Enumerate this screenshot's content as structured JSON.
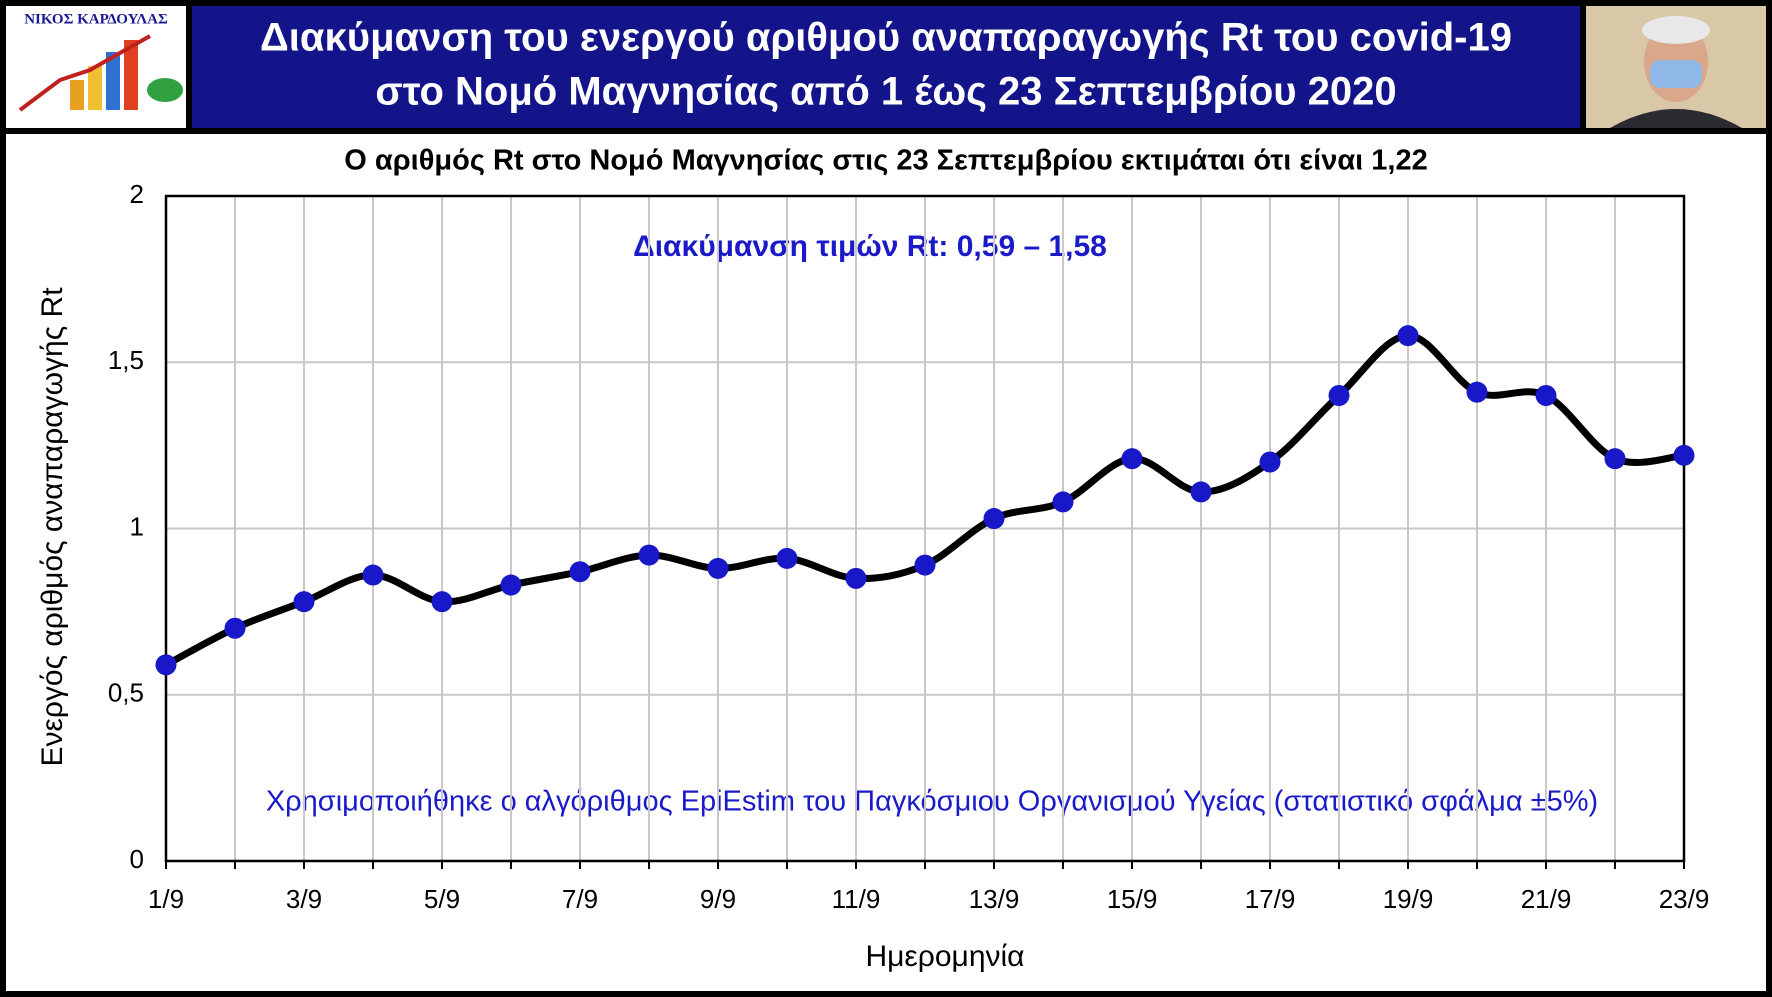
{
  "logo_text": "ΝΙΚΟΣ ΚΑΡΔΟΥΛΑΣ",
  "chart_data": {
    "type": "line",
    "title": [
      "Διακύμανση του ενεργού αριθμού αναπαραγωγής Rt του covid-19",
      "στο Νομό Μαγνησίας από 1 έως 23 Σεπτεμβρίου 2020"
    ],
    "subtitle": "Ο αριθμός Rt στο Νομό Μαγνησίας στις 23 Σεπτεμβρίου εκτιμάται ότι είναι 1,22",
    "annotations": [
      "Διακύμανση τιμών Rt: 0,59 – 1,58",
      "Χρησιμοποιήθηκε ο αλγόριθμος EpiEstim του Παγκόσμιου Οργανισμού Υγείας (στατιστικό σφάλμα ±5%)"
    ],
    "x_label": "Ημερομηνία",
    "y_label": "Ενεργός αριθμός αναπαραγωγής Rt",
    "categories": [
      "1/9",
      null,
      "3/9",
      null,
      "5/9",
      null,
      "7/9",
      null,
      "9/9",
      null,
      "11/9",
      null,
      "13/9",
      null,
      "15/9",
      null,
      "17/9",
      null,
      "19/9",
      null,
      "21/9",
      null,
      "23/9"
    ],
    "series": [
      {
        "name": "Rt",
        "color": "#000000",
        "marker_color": "#1818c8",
        "values": [
          0.59,
          0.7,
          0.78,
          0.86,
          0.78,
          0.83,
          0.87,
          0.92,
          0.88,
          0.91,
          0.85,
          0.89,
          1.03,
          1.08,
          1.21,
          1.11,
          1.2,
          1.4,
          1.58,
          1.41,
          1.4,
          1.21,
          1.22
        ]
      }
    ],
    "ylim": [
      0,
      2
    ],
    "yticks": [
      0,
      {
        "value": 0.5,
        "label": "0,5"
      },
      1,
      {
        "value": 1.5,
        "label": "1,5"
      },
      2
    ],
    "grid": true
  }
}
